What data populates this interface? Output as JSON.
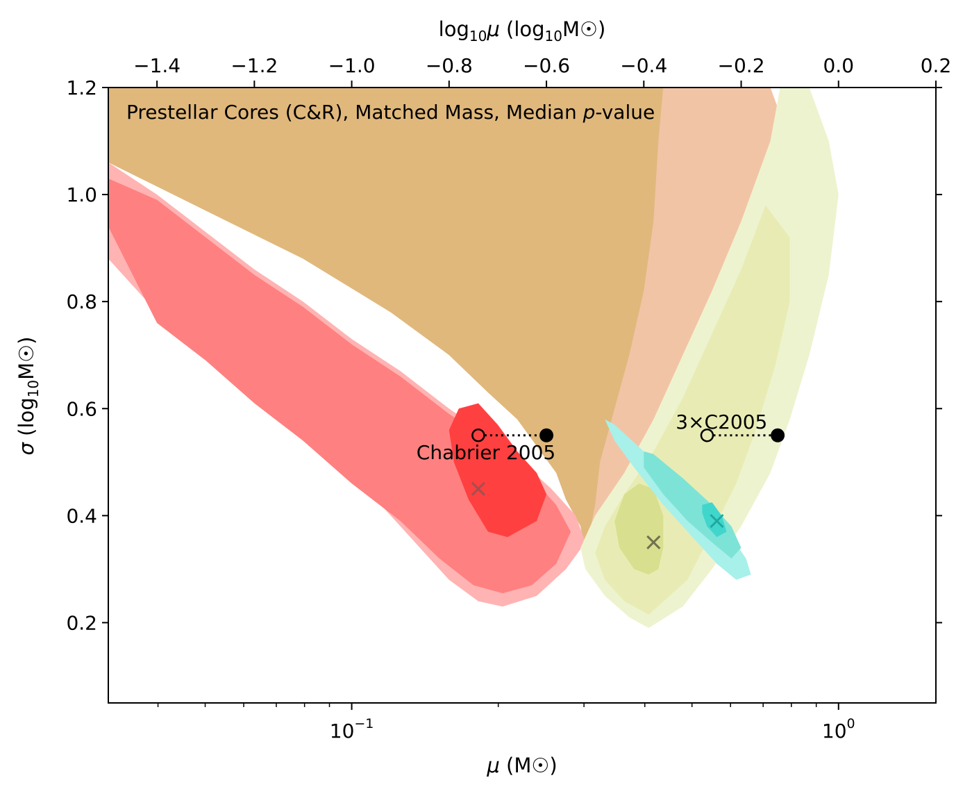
{
  "chart_data": {
    "type": "contour",
    "title": "Prestellar Cores (C&R), Matched Mass, Median p-value",
    "title_parts": {
      "before": "Prestellar Cores (C&R), Matched Mass, Median ",
      "italic": "p",
      "after": "-value"
    },
    "xlabel": "μ (M☉)",
    "xlabel_parts": {
      "var": "μ",
      "unit": " (M☉)"
    },
    "ylabel": "σ (log10M☉)",
    "ylabel_parts": {
      "var": "σ",
      "unit": " (log",
      "sub": "10",
      "unit2": "M☉)"
    },
    "x2label": "log10μ (log10M☉)",
    "x2label_parts": {
      "a": "log",
      "sub": "10",
      "var": "μ",
      "b": " (log",
      "sub2": "10",
      "c": "M☉)"
    },
    "xscale": "log",
    "xlim_log10": [
      -1.5,
      0.2
    ],
    "ylim": [
      0.05,
      1.2
    ],
    "yticks": [
      {
        "value": 0.2,
        "label": "0.2"
      },
      {
        "value": 0.4,
        "label": "0.4"
      },
      {
        "value": 0.6,
        "label": "0.6"
      },
      {
        "value": 0.8,
        "label": "0.8"
      },
      {
        "value": 1.0,
        "label": "1.0"
      },
      {
        "value": 1.2,
        "label": "1.2"
      }
    ],
    "xticks_major": [
      {
        "log10": -1,
        "base": "10",
        "exp": "−1"
      },
      {
        "log10": 0,
        "base": "10",
        "exp": "0"
      }
    ],
    "xticks_minor_values": [
      0.04,
      0.05,
      0.06,
      0.07,
      0.08,
      0.09,
      0.2,
      0.3,
      0.4,
      0.5,
      0.6,
      0.7,
      0.8,
      0.9
    ],
    "x2ticks": [
      {
        "value": -1.4,
        "label": "−1.4"
      },
      {
        "value": -1.2,
        "label": "−1.2"
      },
      {
        "value": -1.0,
        "label": "−1.0"
      },
      {
        "value": -0.8,
        "label": "−0.8"
      },
      {
        "value": -0.6,
        "label": "−0.6"
      },
      {
        "value": -0.4,
        "label": "−0.4"
      },
      {
        "value": -0.2,
        "label": "−0.2"
      },
      {
        "value": 0.0,
        "label": "0.0"
      },
      {
        "value": 0.2,
        "label": "0.2"
      }
    ],
    "contour_sets": [
      {
        "name": "orange",
        "levels": [
          {
            "color": "#f2c4a6",
            "points": [
              [
                -0.48,
                0.31
              ],
              [
                -0.5,
                0.35
              ],
              [
                -0.53,
                0.4
              ],
              [
                -0.55,
                0.45
              ],
              [
                -0.57,
                0.5
              ],
              [
                -0.6,
                0.55
              ],
              [
                -0.63,
                0.6
              ],
              [
                -0.68,
                0.65
              ],
              [
                -0.75,
                0.72
              ],
              [
                -0.85,
                0.8
              ],
              [
                -1.0,
                0.88
              ],
              [
                -1.2,
                0.97
              ],
              [
                -1.5,
                1.1
              ],
              [
                -1.5,
                1.2
              ],
              [
                -0.14,
                1.2
              ],
              [
                -0.12,
                1.15
              ],
              [
                -0.13,
                1.05
              ],
              [
                -0.17,
                0.92
              ],
              [
                -0.22,
                0.8
              ],
              [
                -0.28,
                0.72
              ],
              [
                -0.34,
                0.62
              ],
              [
                -0.4,
                0.52
              ],
              [
                -0.44,
                0.43
              ],
              [
                -0.46,
                0.36
              ]
            ]
          },
          {
            "color": "#e0b87c",
            "points": [
              [
                -0.52,
                0.33
              ],
              [
                -0.53,
                0.38
              ],
              [
                -0.56,
                0.43
              ],
              [
                -0.58,
                0.48
              ],
              [
                -0.62,
                0.53
              ],
              [
                -0.66,
                0.58
              ],
              [
                -0.72,
                0.63
              ],
              [
                -0.8,
                0.7
              ],
              [
                -0.92,
                0.78
              ],
              [
                -1.1,
                0.88
              ],
              [
                -1.3,
                0.97
              ],
              [
                -1.5,
                1.06
              ],
              [
                -1.5,
                1.2
              ],
              [
                -0.36,
                1.2
              ],
              [
                -0.37,
                1.1
              ],
              [
                -0.38,
                0.95
              ],
              [
                -0.4,
                0.82
              ],
              [
                -0.43,
                0.7
              ],
              [
                -0.46,
                0.6
              ],
              [
                -0.49,
                0.5
              ],
              [
                -0.5,
                0.42
              ]
            ]
          }
        ]
      },
      {
        "name": "red",
        "levels": [
          {
            "color": "#ffb3b3",
            "points": [
              [
                -0.69,
                0.23
              ],
              [
                -0.74,
                0.24
              ],
              [
                -0.8,
                0.28
              ],
              [
                -0.86,
                0.34
              ],
              [
                -0.93,
                0.41
              ],
              [
                -1.0,
                0.48
              ],
              [
                -1.1,
                0.56
              ],
              [
                -1.2,
                0.63
              ],
              [
                -1.3,
                0.71
              ],
              [
                -1.4,
                0.78
              ],
              [
                -1.5,
                0.88
              ],
              [
                -1.5,
                1.06
              ],
              [
                -1.4,
                1.0
              ],
              [
                -1.3,
                0.93
              ],
              [
                -1.2,
                0.86
              ],
              [
                -1.1,
                0.8
              ],
              [
                -1.0,
                0.73
              ],
              [
                -0.9,
                0.67
              ],
              [
                -0.8,
                0.6
              ],
              [
                -0.72,
                0.55
              ],
              [
                -0.65,
                0.5
              ],
              [
                -0.59,
                0.45
              ],
              [
                -0.54,
                0.4
              ],
              [
                -0.52,
                0.35
              ],
              [
                -0.56,
                0.3
              ],
              [
                -0.62,
                0.25
              ]
            ]
          },
          {
            "color": "#ff8080",
            "points": [
              [
                -0.69,
                0.255
              ],
              [
                -0.75,
                0.27
              ],
              [
                -0.82,
                0.32
              ],
              [
                -0.9,
                0.39
              ],
              [
                -1.0,
                0.46
              ],
              [
                -1.1,
                0.54
              ],
              [
                -1.2,
                0.61
              ],
              [
                -1.3,
                0.69
              ],
              [
                -1.4,
                0.76
              ],
              [
                -1.5,
                0.94
              ],
              [
                -1.5,
                1.03
              ],
              [
                -1.4,
                0.99
              ],
              [
                -1.3,
                0.92
              ],
              [
                -1.2,
                0.85
              ],
              [
                -1.1,
                0.79
              ],
              [
                -1.0,
                0.72
              ],
              [
                -0.9,
                0.66
              ],
              [
                -0.8,
                0.59
              ],
              [
                -0.7,
                0.53
              ],
              [
                -0.63,
                0.47
              ],
              [
                -0.58,
                0.42
              ],
              [
                -0.55,
                0.37
              ],
              [
                -0.58,
                0.31
              ],
              [
                -0.63,
                0.27
              ]
            ]
          },
          {
            "color": "#ff4040",
            "points": [
              [
                -0.68,
                0.36
              ],
              [
                -0.72,
                0.37
              ],
              [
                -0.76,
                0.43
              ],
              [
                -0.79,
                0.5
              ],
              [
                -0.8,
                0.56
              ],
              [
                -0.78,
                0.6
              ],
              [
                -0.74,
                0.61
              ],
              [
                -0.7,
                0.57
              ],
              [
                -0.66,
                0.52
              ],
              [
                -0.62,
                0.48
              ],
              [
                -0.6,
                0.44
              ],
              [
                -0.62,
                0.39
              ]
            ]
          }
        ]
      },
      {
        "name": "yellow",
        "levels": [
          {
            "color": "#eef3cf",
            "points": [
              [
                -0.39,
                0.19
              ],
              [
                -0.43,
                0.21
              ],
              [
                -0.48,
                0.25
              ],
              [
                -0.52,
                0.3
              ],
              [
                -0.53,
                0.34
              ],
              [
                -0.5,
                0.4
              ],
              [
                -0.44,
                0.48
              ],
              [
                -0.38,
                0.58
              ],
              [
                -0.32,
                0.7
              ],
              [
                -0.26,
                0.82
              ],
              [
                -0.2,
                0.95
              ],
              [
                -0.14,
                1.1
              ],
              [
                -0.12,
                1.2
              ],
              [
                -0.06,
                1.2
              ],
              [
                -0.02,
                1.1
              ],
              [
                0.0,
                1.0
              ],
              [
                -0.02,
                0.85
              ],
              [
                -0.06,
                0.7
              ],
              [
                -0.1,
                0.58
              ],
              [
                -0.14,
                0.48
              ],
              [
                -0.2,
                0.38
              ],
              [
                -0.26,
                0.3
              ],
              [
                -0.32,
                0.23
              ]
            ]
          },
          {
            "color": "#e8ecb4",
            "points": [
              [
                -0.39,
                0.215
              ],
              [
                -0.44,
                0.24
              ],
              [
                -0.48,
                0.28
              ],
              [
                -0.5,
                0.33
              ],
              [
                -0.48,
                0.38
              ],
              [
                -0.44,
                0.44
              ],
              [
                -0.38,
                0.52
              ],
              [
                -0.32,
                0.62
              ],
              [
                -0.26,
                0.74
              ],
              [
                -0.2,
                0.86
              ],
              [
                -0.15,
                0.98
              ],
              [
                -0.1,
                0.92
              ],
              [
                -0.1,
                0.8
              ],
              [
                -0.13,
                0.68
              ],
              [
                -0.17,
                0.56
              ],
              [
                -0.21,
                0.46
              ],
              [
                -0.26,
                0.37
              ],
              [
                -0.31,
                0.28
              ]
            ]
          },
          {
            "color": "#d8df8e",
            "points": [
              [
                -0.39,
                0.29
              ],
              [
                -0.42,
                0.3
              ],
              [
                -0.45,
                0.34
              ],
              [
                -0.46,
                0.39
              ],
              [
                -0.44,
                0.44
              ],
              [
                -0.41,
                0.46
              ],
              [
                -0.38,
                0.45
              ],
              [
                -0.36,
                0.4
              ],
              [
                -0.36,
                0.34
              ],
              [
                -0.37,
                0.3
              ]
            ]
          }
        ]
      },
      {
        "name": "cyan",
        "levels": [
          {
            "color": "#a8f0ea",
            "points": [
              [
                -0.48,
                0.58
              ],
              [
                -0.46,
                0.57
              ],
              [
                -0.4,
                0.52
              ],
              [
                -0.33,
                0.46
              ],
              [
                -0.27,
                0.4
              ],
              [
                -0.22,
                0.36
              ],
              [
                -0.19,
                0.32
              ],
              [
                -0.18,
                0.29
              ],
              [
                -0.21,
                0.28
              ],
              [
                -0.25,
                0.31
              ],
              [
                -0.3,
                0.36
              ],
              [
                -0.36,
                0.42
              ],
              [
                -0.42,
                0.49
              ],
              [
                -0.46,
                0.54
              ]
            ]
          },
          {
            "color": "#7de3d6",
            "points": [
              [
                -0.4,
                0.52
              ],
              [
                -0.38,
                0.515
              ],
              [
                -0.32,
                0.47
              ],
              [
                -0.26,
                0.42
              ],
              [
                -0.22,
                0.38
              ],
              [
                -0.2,
                0.34
              ],
              [
                -0.22,
                0.32
              ],
              [
                -0.26,
                0.35
              ],
              [
                -0.31,
                0.39
              ],
              [
                -0.36,
                0.44
              ],
              [
                -0.4,
                0.49
              ]
            ]
          },
          {
            "color": "#40d6cc",
            "points": [
              [
                -0.28,
                0.42
              ],
              [
                -0.26,
                0.425
              ],
              [
                -0.24,
                0.4
              ],
              [
                -0.23,
                0.37
              ],
              [
                -0.25,
                0.36
              ],
              [
                -0.27,
                0.38
              ],
              [
                -0.28,
                0.405
              ]
            ]
          }
        ]
      }
    ],
    "markers": [
      {
        "name": "red-best-fit",
        "type": "x",
        "log10x": -0.74,
        "y": 0.45,
        "color": "#a05050"
      },
      {
        "name": "yellow-best-fit",
        "type": "x",
        "log10x": -0.38,
        "y": 0.35,
        "color": "#707050"
      },
      {
        "name": "cyan-best-fit",
        "type": "x",
        "log10x": -0.25,
        "y": 0.39,
        "color": "#20a8a0"
      }
    ],
    "reference_points": [
      {
        "name": "chabrier-2005",
        "label": "Chabrier 2005",
        "open_log10x": -0.74,
        "filled_log10x": -0.6,
        "y": 0.55
      },
      {
        "name": "3x-c2005",
        "label": "3×C2005",
        "open_log10x": -0.27,
        "filled_log10x": -0.125,
        "y": 0.55
      }
    ]
  }
}
